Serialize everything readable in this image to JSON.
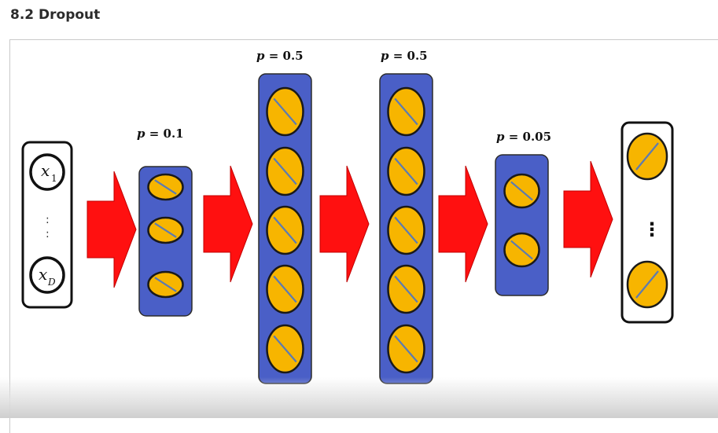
{
  "section": {
    "title": "8.2 Dropout"
  },
  "colors": {
    "layer_fill": "#4a5fc7",
    "layer_stroke": "#2b2b2b",
    "neuron_fill": "#f7b500",
    "neuron_stroke": "#1a1a1a",
    "drop_line": "#5d7bb0",
    "arrow_fill": "#ff1010",
    "arrow_stroke": "#c00000",
    "input_box_stroke": "#111111"
  },
  "input_layer": {
    "first": {
      "symbol": "x",
      "subscript": "1"
    },
    "dots": ":",
    "last": {
      "symbol": "x",
      "subscript": "D"
    }
  },
  "layers": [
    {
      "name": "hidden-1",
      "label_var": "p",
      "label_eq": " = ",
      "label_val": "0.1",
      "neurons": 3
    },
    {
      "name": "hidden-2",
      "label_var": "p",
      "label_eq": " = ",
      "label_val": "0.5",
      "neurons": 5
    },
    {
      "name": "hidden-3",
      "label_var": "p",
      "label_eq": " = ",
      "label_val": "0.5",
      "neurons": 5
    },
    {
      "name": "hidden-4",
      "label_var": "p",
      "label_eq": " = ",
      "label_val": "0.05",
      "neurons": 2
    }
  ],
  "output_layer": {
    "dots": "⋮",
    "neurons": 2
  },
  "icons": {
    "arrow": "red-right-arrow-icon",
    "dropped_neuron": "crossed-neuron-icon"
  }
}
